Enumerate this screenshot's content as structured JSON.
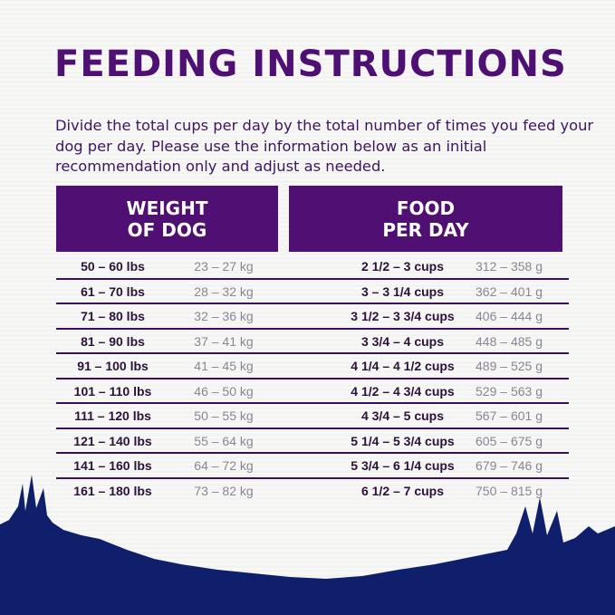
{
  "title": "FEEDING INSTRUCTIONS",
  "intro": "Divide the total cups per day by the total number of times you feed your dog per day. Please use the information below as an initial recommendation only and adjust as needed.",
  "headers": {
    "weight_line1": "WEIGHT",
    "weight_line2": "OF DOG",
    "food_line1": "FOOD",
    "food_line2": "PER DAY"
  },
  "colors": {
    "purple": "#500f73",
    "navy": "#0f1f6b"
  },
  "rows": [
    {
      "lbs": "50 – 60 lbs",
      "kg": "23 – 27 kg",
      "cups": "2 1/2 – 3 cups",
      "grams": "312 – 358 g"
    },
    {
      "lbs": "61 – 70 lbs",
      "kg": "28 – 32 kg",
      "cups": "3 – 3 1/4 cups",
      "grams": "362 – 401 g"
    },
    {
      "lbs": "71 – 80 lbs",
      "kg": "32 – 36 kg",
      "cups": "3 1/2 – 3 3/4 cups",
      "grams": "406 – 444 g"
    },
    {
      "lbs": "81 – 90 lbs",
      "kg": "37 – 41 kg",
      "cups": "3 3/4 – 4 cups",
      "grams": "448 – 485 g"
    },
    {
      "lbs": "91 – 100 lbs",
      "kg": "41 – 45 kg",
      "cups": "4 1/4 – 4 1/2 cups",
      "grams": "489 – 525 g"
    },
    {
      "lbs": "101 – 110 lbs",
      "kg": "46 – 50 kg",
      "cups": "4 1/2 – 4 3/4 cups",
      "grams": "529 – 563 g"
    },
    {
      "lbs": "111 – 120 lbs",
      "kg": "50 – 55 kg",
      "cups": "4 3/4 – 5 cups",
      "grams": "567 – 601 g"
    },
    {
      "lbs": "121 – 140 lbs",
      "kg": "55 – 64 kg",
      "cups": "5 1/4 – 5 3/4 cups",
      "grams": "605 – 675 g"
    },
    {
      "lbs": "141 – 160 lbs",
      "kg": "64 – 72 kg",
      "cups": "5 3/4 – 6 1/4 cups",
      "grams": "679 – 746 g"
    },
    {
      "lbs": "161 – 180 lbs",
      "kg": "73 – 82 kg",
      "cups": "6 1/2 – 7 cups",
      "grams": "750 – 815 g"
    }
  ]
}
